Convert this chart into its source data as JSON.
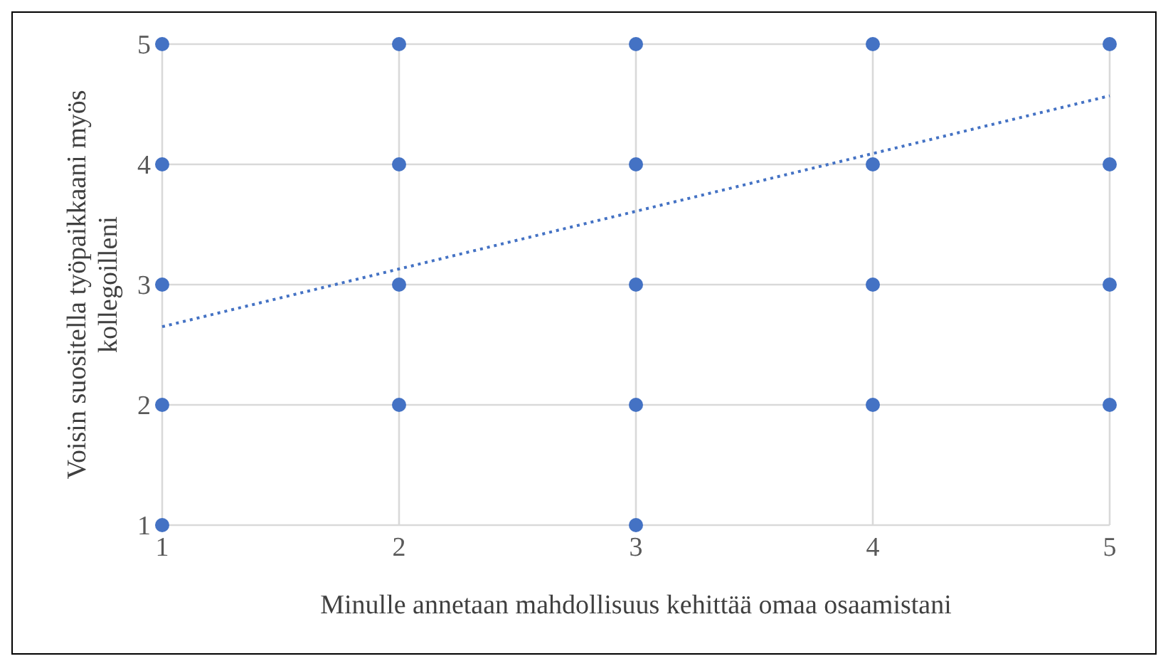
{
  "chart_data": {
    "type": "scatter",
    "xlabel": "Minulle annetaan mahdollisuus kehittää omaa osaamistani",
    "ylabel": "Voisin suositella työpaikkaani myös kollegoilleni",
    "x": [
      1,
      1,
      1,
      1,
      1,
      2,
      2,
      2,
      2,
      3,
      3,
      3,
      3,
      3,
      4,
      4,
      4,
      4,
      5,
      5,
      5,
      5
    ],
    "series": [
      {
        "color": "#4472c4",
        "marker": "circle",
        "values": [
          5,
          4,
          3,
          2,
          1,
          5,
          4,
          3,
          2,
          5,
          4,
          3,
          2,
          1,
          5,
          4,
          3,
          2,
          5,
          4,
          3,
          2
        ]
      },
      {
        "type": "line",
        "color": "#4472c4",
        "x": [
          1,
          5
        ],
        "values": [
          2.65,
          4.57
        ],
        "line_style": "dotted",
        "marker": "none"
      }
    ],
    "xlim": [
      1,
      5
    ],
    "xticks": [
      1,
      2,
      3,
      4,
      5
    ],
    "ylim": [
      1,
      5
    ],
    "yticks": [
      1,
      2,
      3,
      4,
      5
    ],
    "grid": true,
    "legend": false
  }
}
